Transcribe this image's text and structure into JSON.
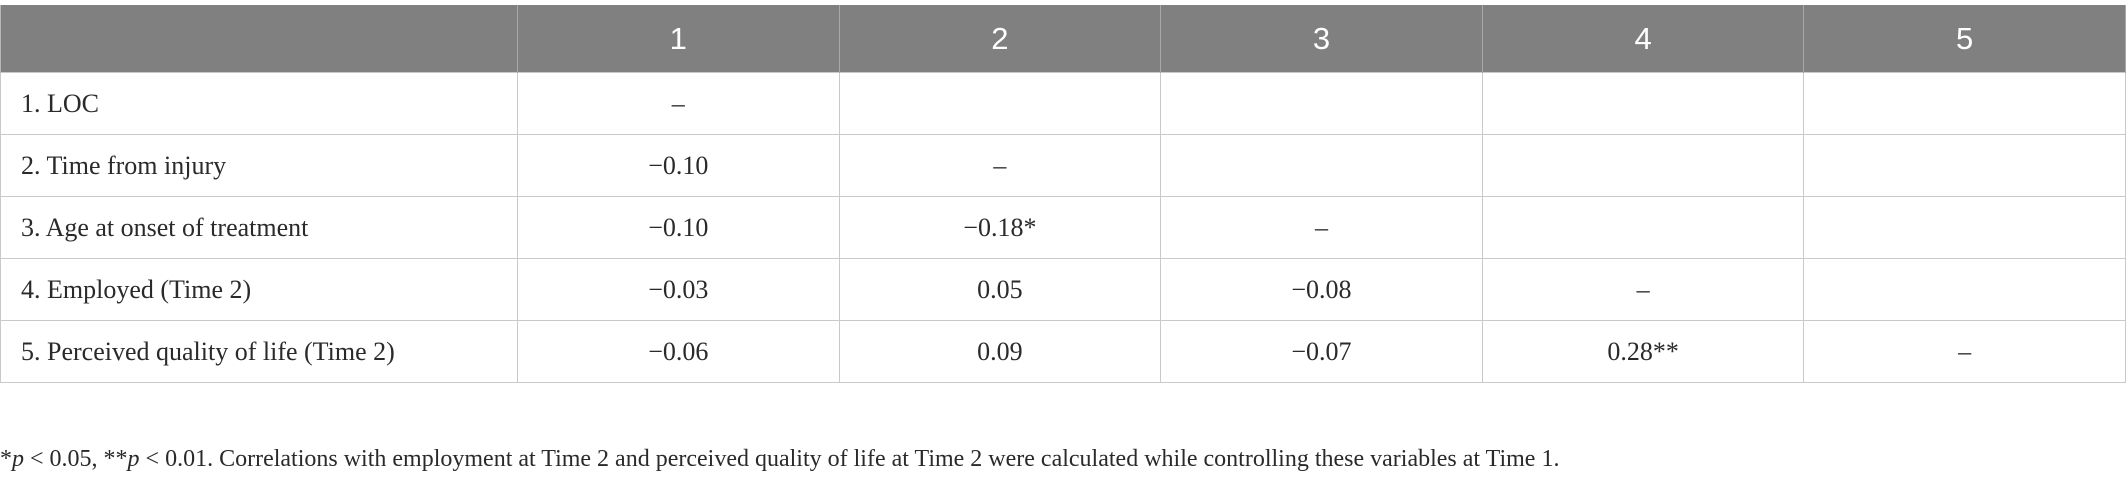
{
  "table": {
    "columns": [
      "",
      "1",
      "2",
      "3",
      "4",
      "5"
    ],
    "rows": [
      {
        "label": "1.  LOC",
        "cells": [
          "–",
          "",
          "",
          "",
          ""
        ]
      },
      {
        "label": "2.  Time from injury",
        "cells": [
          "−0.10",
          "–",
          "",
          "",
          ""
        ]
      },
      {
        "label": "3.  Age at onset of treatment",
        "cells": [
          "−0.10",
          "−0.18*",
          "–",
          "",
          ""
        ]
      },
      {
        "label": "4.  Employed (Time 2)",
        "cells": [
          "−0.03",
          "0.05",
          "−0.08",
          "–",
          ""
        ]
      },
      {
        "label": "5.  Perceived quality of life (Time 2)",
        "cells": [
          "−0.06",
          "0.09",
          "−0.07",
          "0.28**",
          "–"
        ]
      }
    ]
  },
  "footnote": {
    "star1": "*",
    "p1": "p",
    "t1": " < 0.05, **",
    "p2": "p",
    "t2": " < 0.01. Correlations with employment at Time 2 and perceived quality of life at Time 2 were calculated while controlling these variables at Time 1."
  }
}
